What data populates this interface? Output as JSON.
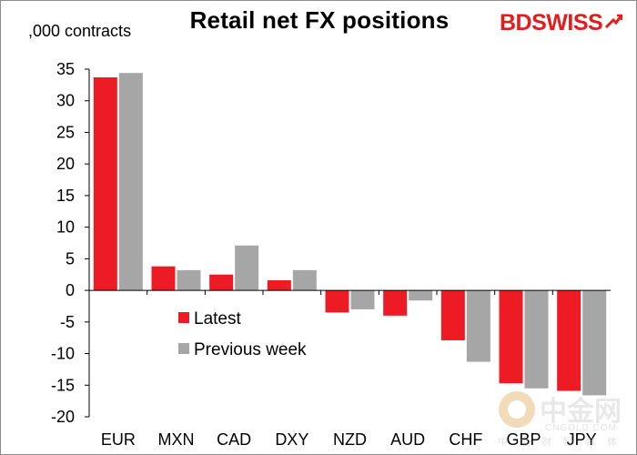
{
  "header": {
    "title": "Retail net FX positions",
    "unit": ",000 contracts"
  },
  "logo": {
    "text_a": "BD",
    "text_b": "SWISS",
    "color": "#e31d1c"
  },
  "watermark": {
    "cn": "中金网",
    "en": "CNGOLD.COM",
    "sub": "中 金 财 经 媒 体"
  },
  "chart_data": {
    "type": "bar",
    "categories": [
      "EUR",
      "MXN",
      "CAD",
      "DXY",
      "NZD",
      "AUD",
      "CHF",
      "GBP",
      "JPY"
    ],
    "series": [
      {
        "name": "Latest",
        "color": "#ed1c24",
        "values": [
          33.7,
          3.8,
          2.5,
          1.6,
          -3.5,
          -4.0,
          -7.9,
          -14.7,
          -15.9
        ]
      },
      {
        "name": "Previous week",
        "color": "#a6a6a6",
        "values": [
          34.4,
          3.2,
          7.1,
          3.2,
          -3.0,
          -1.6,
          -11.3,
          -15.5,
          -16.6
        ]
      }
    ],
    "ylim": [
      -20,
      35
    ],
    "yticks": [
      "35",
      "30",
      "25",
      "20",
      "15",
      "10",
      "5",
      "0",
      "-5",
      "-10",
      "-15",
      "-20"
    ],
    "grid": false,
    "legend": "center-left"
  }
}
